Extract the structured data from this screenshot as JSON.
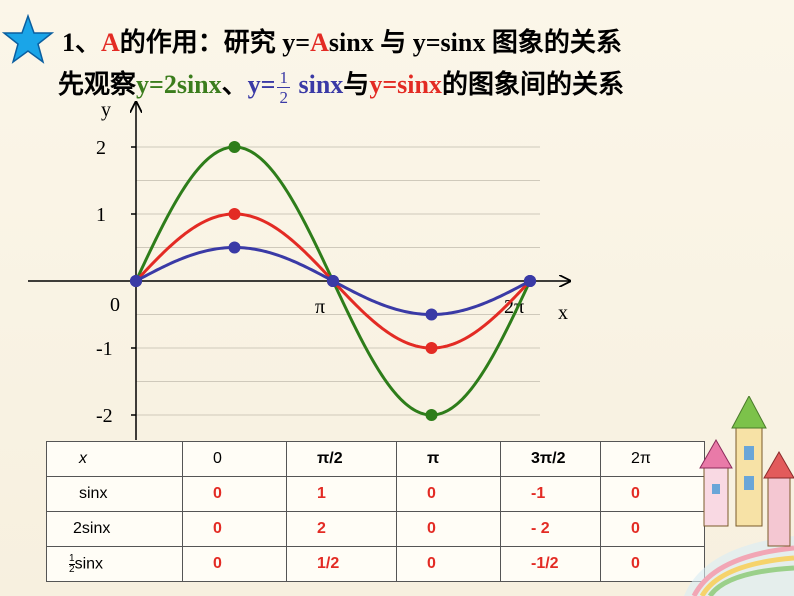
{
  "title": {
    "line1_number": "1、",
    "line1_A": "A",
    "line1_text": "的作用：研究 y=",
    "line1_A2": "A",
    "line1_text2": "sinx 与 y=sinx 图象的关系",
    "line2_prefix": "先观察",
    "line2_green": "y=2sinx",
    "line2_sep": "、",
    "line2_blue_pre": "y=",
    "line2_frac_num": "1",
    "line2_frac_den": "2",
    "line2_blue_post": " sinx",
    "line2_mid": "与",
    "line2_red": "y=sinx",
    "line2_suffix": "的图象间的关系"
  },
  "colors": {
    "green": "#2e7d1a",
    "red": "#e32b24",
    "blue": "#3a3aa6",
    "title_red": "#e32b24"
  },
  "chart_data": {
    "type": "line",
    "xlabel": "x",
    "ylabel": "y",
    "xlim": [
      0,
      6.2832
    ],
    "ylim": [
      -2,
      2
    ],
    "x_ticks": [
      {
        "value": 0,
        "label": "0"
      },
      {
        "value": 3.1416,
        "label": "π"
      },
      {
        "value": 6.2832,
        "label": "2π"
      }
    ],
    "y_ticks": [
      {
        "value": 2,
        "label": "2"
      },
      {
        "value": 1,
        "label": "1"
      },
      {
        "value": -1,
        "label": "-1"
      },
      {
        "value": -2,
        "label": "-2"
      }
    ],
    "grid": true,
    "series": [
      {
        "name": "y=2sinx",
        "amplitude": 2,
        "color": "#2e7d1a",
        "points_x": [
          0,
          1.5708,
          3.1416,
          4.7124,
          6.2832
        ],
        "points_y": [
          0,
          2,
          0,
          -2,
          0
        ]
      },
      {
        "name": "y=sinx",
        "amplitude": 1,
        "color": "#e32b24",
        "points_x": [
          0,
          1.5708,
          3.1416,
          4.7124,
          6.2832
        ],
        "points_y": [
          0,
          1,
          0,
          -1,
          0
        ]
      },
      {
        "name": "y=1/2 sinx",
        "amplitude": 0.5,
        "color": "#3a3aa6",
        "points_x": [
          0,
          1.5708,
          3.1416,
          4.7124,
          6.2832
        ],
        "points_y": [
          0,
          0.5,
          0,
          -0.5,
          0
        ]
      }
    ]
  },
  "table": {
    "header": {
      "label": "x",
      "values": [
        "0",
        "π/2",
        "π",
        "3π/2",
        "2π"
      ]
    },
    "rows": [
      {
        "label": "sinx",
        "values": [
          "0",
          "1",
          "0",
          "-1",
          "0"
        ]
      },
      {
        "label": "2sinx",
        "values": [
          "0",
          "2",
          "0",
          "- 2",
          "0"
        ]
      },
      {
        "label_num": "1",
        "label_den": "2",
        "label_text": "sinx",
        "values": [
          "0",
          "1/2",
          "0",
          "-1/2",
          "0"
        ]
      }
    ]
  }
}
